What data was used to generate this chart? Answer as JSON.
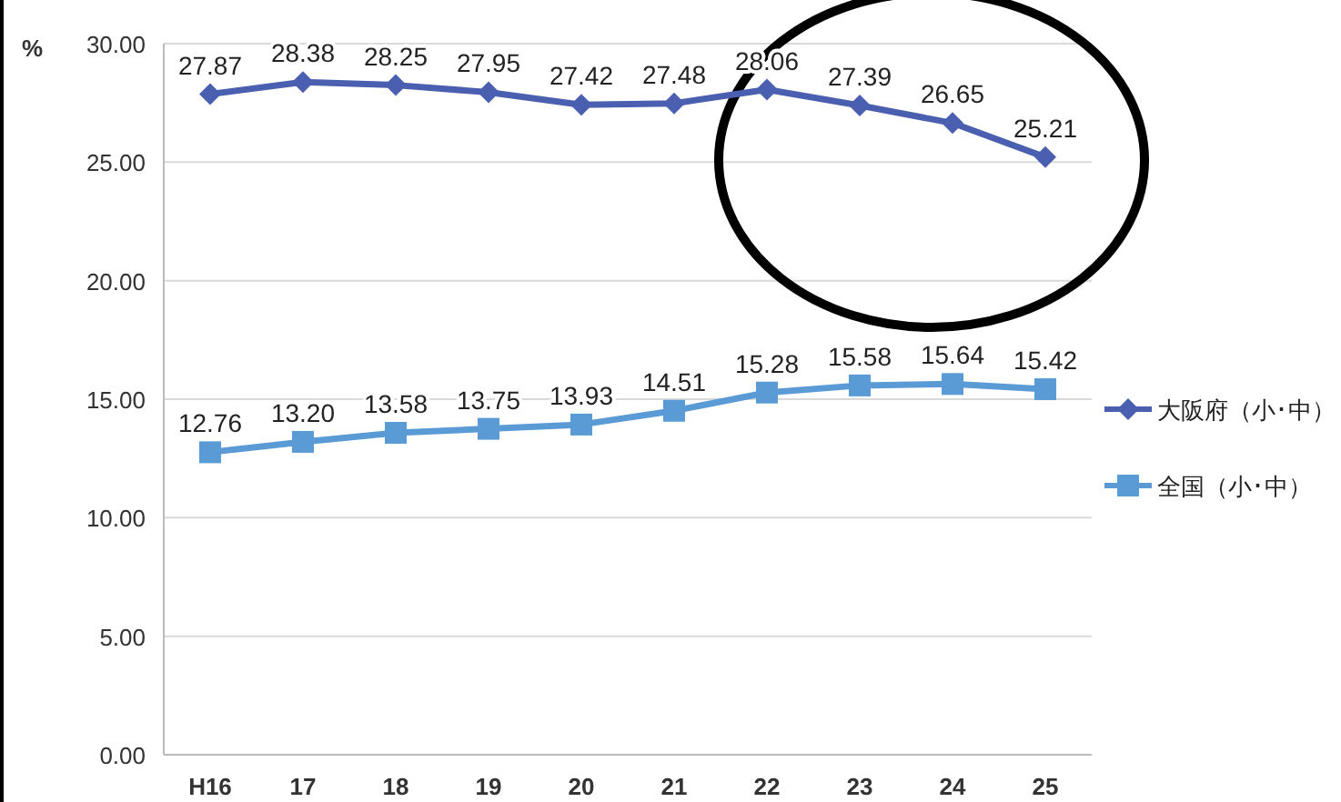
{
  "chart_data": {
    "type": "line",
    "ylabel": "%",
    "categories": [
      "H16",
      "17",
      "18",
      "19",
      "20",
      "21",
      "22",
      "23",
      "24",
      "25"
    ],
    "series": [
      {
        "name": "大阪府（小･中）",
        "color": "#4a5fb0",
        "marker": "diamond",
        "values": [
          27.87,
          28.38,
          28.25,
          27.95,
          27.42,
          27.48,
          28.06,
          27.39,
          26.65,
          25.21
        ]
      },
      {
        "name": "全国（小･中）",
        "color": "#5b9bd5",
        "marker": "square",
        "values": [
          12.76,
          13.2,
          13.58,
          13.75,
          13.93,
          14.51,
          15.28,
          15.58,
          15.64,
          15.42
        ],
        "value_labels": [
          "12.76",
          "13.20",
          "13.58",
          "13.75",
          "13.93",
          "14.51",
          "15.28",
          "15.58",
          "15.64",
          "15.42"
        ]
      }
    ],
    "ylim": [
      0,
      30
    ],
    "yticks": [
      {
        "value": 0,
        "label": "0.00"
      },
      {
        "value": 5,
        "label": "5.00"
      },
      {
        "value": 10,
        "label": "10.00"
      },
      {
        "value": 15,
        "label": "15.00"
      },
      {
        "value": 20,
        "label": "20.00"
      },
      {
        "value": 25,
        "label": "25.00"
      },
      {
        "value": 30,
        "label": "30.00"
      }
    ],
    "grid": "y",
    "legend": "right",
    "data_labels": true,
    "line_style": "solid"
  }
}
